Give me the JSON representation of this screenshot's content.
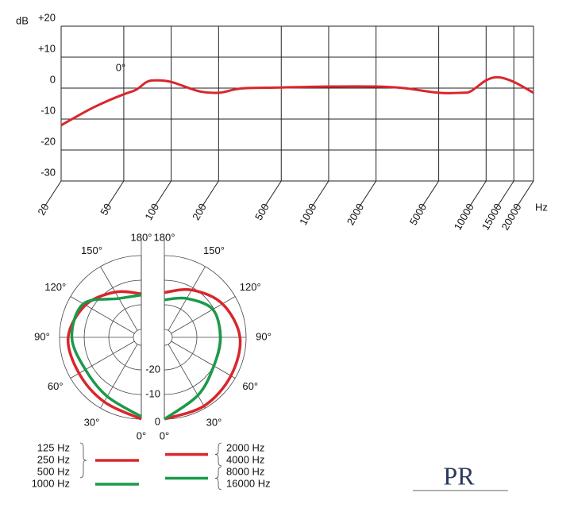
{
  "chart_data": [
    {
      "type": "line",
      "x_scale": "log",
      "ylabel": "dB",
      "xlabel": "Hz",
      "annotation": "0°",
      "xlim": [
        20,
        20000
      ],
      "xticks": [
        20,
        50,
        100,
        200,
        500,
        1000,
        2000,
        5000,
        10000,
        15000,
        20000
      ],
      "ylim": [
        -30,
        20
      ],
      "yticks": [
        {
          "value": 20,
          "label": "+20"
        },
        {
          "value": 10,
          "label": "+10"
        },
        0,
        -10,
        -20,
        -30
      ],
      "grid": true,
      "x": [
        20,
        30,
        40,
        50,
        60,
        70,
        80,
        100,
        150,
        200,
        250,
        300,
        500,
        1000,
        2000,
        3000,
        5000,
        7000,
        8000,
        10000,
        12000,
        15000,
        20000
      ],
      "series": [
        {
          "color": "#d9262c",
          "values": [
            -12,
            -7,
            -4,
            -2,
            -0.5,
            2,
            2.5,
            2,
            -1,
            -1.5,
            -0.5,
            0,
            0.2,
            0.5,
            0.5,
            0,
            -1.5,
            -1.5,
            -1,
            2.5,
            3.5,
            2,
            -1.5
          ]
        }
      ]
    },
    {
      "type": "polar",
      "rlim": [
        -30,
        0
      ],
      "rticks": [
        -20,
        -10,
        0
      ],
      "angle_ticks": [
        {
          "value": 0,
          "label": "0°"
        },
        {
          "value": 30,
          "label": "30°"
        },
        {
          "value": 60,
          "label": "60°"
        },
        {
          "value": 90,
          "label": "90°"
        },
        {
          "value": 120,
          "label": "120°"
        },
        {
          "value": 150,
          "label": "150°"
        },
        {
          "value": 180,
          "label": "180°"
        }
      ],
      "theta": [
        0,
        30,
        60,
        90,
        120,
        150,
        180
      ],
      "series": [
        {
          "labels": [
            "125 Hz",
            "250 Hz",
            "500 Hz"
          ],
          "color": "#d9262c",
          "side": "left",
          "values": [
            0,
            -3,
            -4,
            -3.5,
            -7,
            -12,
            -15.5
          ]
        },
        {
          "labels": [
            "1000 Hz"
          ],
          "color": "#1a9a4a",
          "side": "left",
          "values": [
            -1,
            -5.5,
            -7,
            -5,
            -6,
            -15,
            -16
          ]
        },
        {
          "labels": [
            "2000 Hz",
            "4000 Hz"
          ],
          "color": "#d9262c",
          "side": "right",
          "values": [
            0,
            -1,
            -2,
            -2.5,
            -6,
            -11,
            -15
          ]
        },
        {
          "labels": [
            "8000 Hz",
            "16000 Hz"
          ],
          "color": "#1a9a4a",
          "side": "right",
          "values": [
            0,
            -6,
            -10,
            -10.5,
            -10.5,
            -15,
            -18
          ]
        }
      ]
    }
  ],
  "logo": "PR"
}
